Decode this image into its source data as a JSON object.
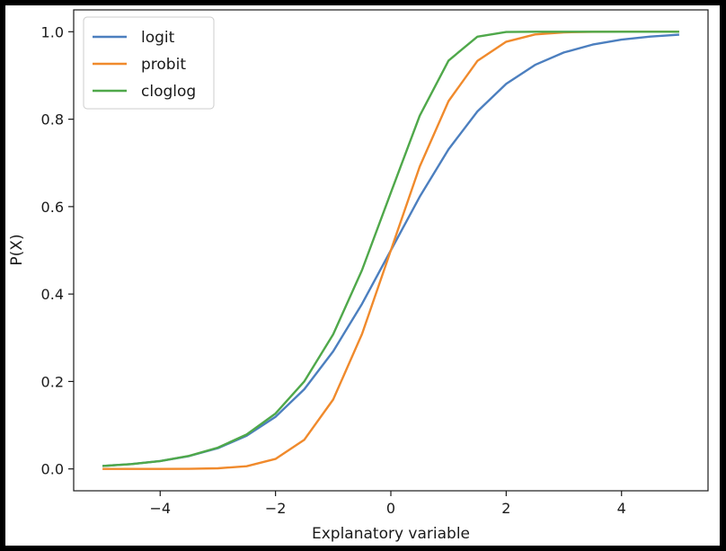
{
  "chart_data": {
    "type": "line",
    "title": "",
    "xlabel": "Explanatory variable",
    "ylabel": "P(X)",
    "xlim": [
      -5.5,
      5.5
    ],
    "ylim": [
      -0.05,
      1.05
    ],
    "x_ticks": [
      -4,
      -2,
      0,
      2,
      4
    ],
    "x_tick_labels": [
      "−4",
      "−2",
      "0",
      "2",
      "4"
    ],
    "y_ticks": [
      0.0,
      0.2,
      0.4,
      0.6,
      0.8,
      1.0
    ],
    "y_tick_labels": [
      "0.0",
      "0.2",
      "0.4",
      "0.6",
      "0.8",
      "1.0"
    ],
    "grid": false,
    "legend_position": "top-left",
    "x": [
      -5,
      -4.5,
      -4,
      -3.5,
      -3,
      -2.5,
      -2,
      -1.5,
      -1,
      -0.5,
      0,
      0.5,
      1,
      1.5,
      2,
      2.5,
      3,
      3.5,
      4,
      4.5,
      5
    ],
    "series": [
      {
        "name": "logit",
        "color": "#4c7fbf",
        "values": [
          0.0067,
          0.011,
          0.018,
          0.0293,
          0.0474,
          0.0759,
          0.1192,
          0.1824,
          0.2689,
          0.3775,
          0.5,
          0.6225,
          0.7311,
          0.8176,
          0.8808,
          0.9241,
          0.9526,
          0.9707,
          0.982,
          0.989,
          0.9933
        ]
      },
      {
        "name": "probit",
        "color": "#f08a2c",
        "values": [
          0.0,
          0.0,
          0.0,
          0.0002,
          0.0013,
          0.0062,
          0.0228,
          0.0668,
          0.1587,
          0.3085,
          0.5,
          0.6915,
          0.8413,
          0.9332,
          0.9772,
          0.9938,
          0.9987,
          0.9998,
          1.0,
          1.0,
          1.0
        ]
      },
      {
        "name": "cloglog",
        "color": "#4fa84a",
        "values": [
          0.0067,
          0.011,
          0.0181,
          0.0297,
          0.0486,
          0.0788,
          0.1266,
          0.2003,
          0.3078,
          0.4548,
          0.6321,
          0.8077,
          0.934,
          0.9887,
          0.9994,
          1.0,
          1.0,
          1.0,
          1.0,
          1.0,
          1.0
        ]
      }
    ]
  }
}
